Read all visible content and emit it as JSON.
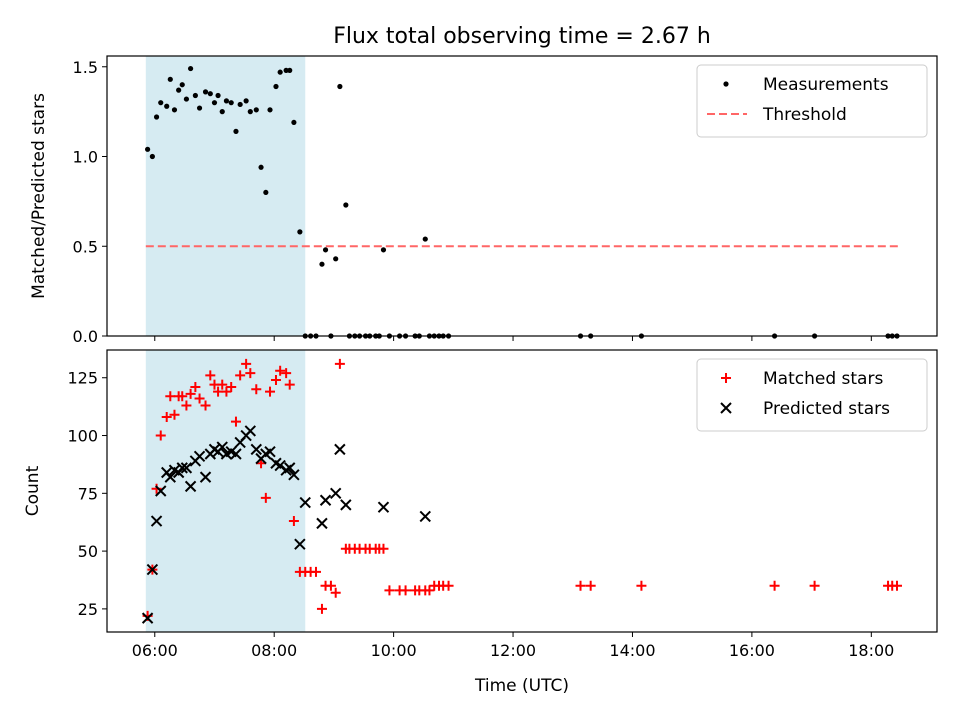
{
  "title": "Flux total observing time = 2.67 h",
  "colors": {
    "observing_span": "#add8e6",
    "threshold": "#ff6666",
    "measurements": "#000000",
    "matched": "#ff0000",
    "predicted": "#000000"
  },
  "chart_data": [
    {
      "type": "scatter",
      "ylabel": "Matched/Predicted stars",
      "xlim": [
        5.2,
        19.1
      ],
      "ylim": [
        0,
        1.56
      ],
      "yticks": [
        0,
        0.5,
        1.0,
        1.5
      ],
      "ytick_labels": [
        "0.0",
        "0.5",
        "1.0",
        "1.5"
      ],
      "grid": false,
      "legend": "top-right",
      "shaded_span": [
        5.85,
        8.52
      ],
      "threshold": {
        "name": "Threshold",
        "y": 0.5,
        "x": [
          5.85,
          18.5
        ]
      },
      "series": [
        {
          "name": "Measurements",
          "marker": "dot",
          "x": [
            5.88,
            5.96,
            6.03,
            6.1,
            6.2,
            6.26,
            6.33,
            6.4,
            6.46,
            6.53,
            6.6,
            6.68,
            6.75,
            6.85,
            6.93,
            7.0,
            7.06,
            7.13,
            7.2,
            7.28,
            7.36,
            7.43,
            7.53,
            7.6,
            7.7,
            7.78,
            7.86,
            7.93,
            8.03,
            8.1,
            8.2,
            8.26,
            8.33,
            8.43,
            8.52,
            8.61,
            8.7,
            8.8,
            8.86,
            8.95,
            9.03,
            9.1,
            9.2,
            9.26,
            9.35,
            9.43,
            9.53,
            9.6,
            9.7,
            9.76,
            9.83,
            9.93,
            10.1,
            10.2,
            10.36,
            10.43,
            10.53,
            10.6,
            10.68,
            10.76,
            10.83,
            10.92,
            13.13,
            13.3,
            14.15,
            16.38,
            17.05,
            18.28,
            18.35,
            18.43
          ],
          "y": [
            1.04,
            1.0,
            1.22,
            1.3,
            1.28,
            1.43,
            1.26,
            1.37,
            1.4,
            1.32,
            1.49,
            1.34,
            1.27,
            1.36,
            1.35,
            1.3,
            1.34,
            1.25,
            1.31,
            1.3,
            1.14,
            1.29,
            1.31,
            1.25,
            1.26,
            0.94,
            0.8,
            1.26,
            1.39,
            1.47,
            1.48,
            1.48,
            1.19,
            0.58,
            0,
            0,
            0,
            0.4,
            0.48,
            0,
            0.43,
            1.39,
            0.73,
            0,
            0,
            0,
            0,
            0,
            0,
            0,
            0.48,
            0,
            0,
            0,
            0,
            0,
            0.54,
            0,
            0,
            0,
            0,
            0,
            0,
            0,
            0,
            0,
            0,
            0,
            0,
            0
          ]
        }
      ]
    },
    {
      "type": "scatter",
      "xlabel": "Time (UTC)",
      "ylabel": "Count",
      "xlim": [
        5.2,
        19.1
      ],
      "ylim": [
        15,
        137
      ],
      "xticks": [
        6,
        8,
        10,
        12,
        14,
        16,
        18
      ],
      "xtick_labels": [
        "06:00",
        "08:00",
        "10:00",
        "12:00",
        "14:00",
        "16:00",
        "18:00"
      ],
      "yticks": [
        25,
        50,
        75,
        100,
        125
      ],
      "ytick_labels": [
        "25",
        "50",
        "75",
        "100",
        "125"
      ],
      "grid": false,
      "legend": "top-right",
      "shaded_span": [
        5.85,
        8.52
      ],
      "series": [
        {
          "name": "Matched stars",
          "marker": "plus",
          "x": [
            5.88,
            5.96,
            6.03,
            6.1,
            6.2,
            6.26,
            6.33,
            6.4,
            6.46,
            6.53,
            6.6,
            6.68,
            6.75,
            6.85,
            6.93,
            7.0,
            7.06,
            7.13,
            7.2,
            7.28,
            7.36,
            7.43,
            7.53,
            7.6,
            7.7,
            7.78,
            7.86,
            7.93,
            8.03,
            8.1,
            8.2,
            8.26,
            8.33,
            8.43,
            8.52,
            8.61,
            8.7,
            8.8,
            8.86,
            8.95,
            9.03,
            9.1,
            9.2,
            9.26,
            9.35,
            9.43,
            9.53,
            9.6,
            9.7,
            9.76,
            9.83,
            9.93,
            10.1,
            10.2,
            10.36,
            10.43,
            10.53,
            10.6,
            10.68,
            10.76,
            10.83,
            10.92,
            13.13,
            13.3,
            14.15,
            16.38,
            17.05,
            18.28,
            18.35,
            18.43
          ],
          "y": [
            22,
            42,
            77,
            100,
            108,
            117,
            109,
            117,
            117,
            113,
            118,
            121,
            116,
            113,
            126,
            122,
            119,
            122,
            119,
            121,
            106,
            126,
            131,
            127,
            120,
            88,
            73,
            119,
            124,
            128,
            127,
            122,
            63,
            41,
            41,
            41,
            41,
            25,
            35,
            35,
            32,
            131,
            51,
            51,
            51,
            51,
            51,
            51,
            51,
            51,
            51,
            33,
            33,
            33,
            33,
            33,
            33,
            33,
            35,
            35,
            35,
            35,
            35,
            35,
            35,
            35,
            35,
            35,
            35,
            35
          ]
        },
        {
          "name": "Predicted stars",
          "marker": "x",
          "x": [
            5.88,
            5.96,
            6.03,
            6.1,
            6.2,
            6.26,
            6.33,
            6.4,
            6.46,
            6.53,
            6.6,
            6.68,
            6.75,
            6.85,
            6.93,
            7.0,
            7.06,
            7.13,
            7.2,
            7.28,
            7.36,
            7.43,
            7.53,
            7.6,
            7.7,
            7.78,
            7.86,
            7.93,
            8.03,
            8.1,
            8.2,
            8.26,
            8.33,
            8.43,
            8.52,
            8.8,
            8.86,
            9.03,
            9.1,
            9.2,
            9.83,
            10.53
          ],
          "y": [
            21,
            42,
            63,
            76,
            84,
            82,
            85,
            84,
            86,
            86,
            78,
            89,
            91,
            82,
            92,
            94,
            93,
            95,
            92,
            93,
            92,
            97,
            100,
            102,
            94,
            90,
            92,
            93,
            88,
            87,
            85,
            86,
            83,
            53,
            71,
            62,
            72,
            75,
            94,
            70,
            69,
            65
          ]
        }
      ]
    }
  ]
}
